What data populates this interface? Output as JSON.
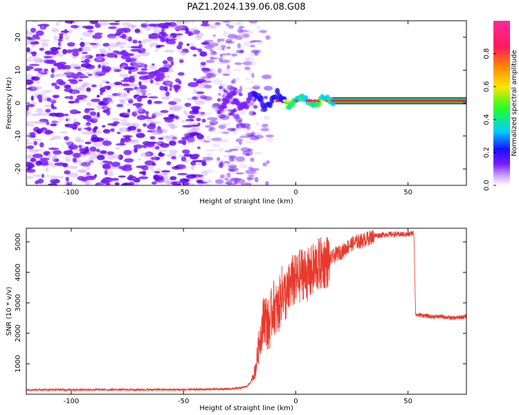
{
  "title": "PAZ1.2024.139.06.08.G08",
  "colors": {
    "snr_line": "#e8392c",
    "speckle": "#7b2bff",
    "strong_band": "#ff1a4a",
    "colormap": [
      "#ffffff",
      "#c9a2ff",
      "#7a1cff",
      "#1a10ff",
      "#00d0ff",
      "#22ff22",
      "#ffe600",
      "#ff8800",
      "#ff1a5a",
      "#ff2a9a"
    ]
  },
  "chart_data": [
    {
      "type": "heatmap",
      "name": "spectrogram",
      "xlabel": "Height of straight line (km)",
      "ylabel": "Frequency (Hz)",
      "xlim": [
        -120,
        76
      ],
      "ylim": [
        -25,
        25
      ],
      "xticks": [
        -100,
        -50,
        0,
        50
      ],
      "xticklabels": [
        "-100",
        "-50",
        "0",
        "50"
      ],
      "yticks": [
        -20,
        -10,
        0,
        10,
        20
      ],
      "yticklabels": [
        "-20",
        "-10",
        "0",
        "10",
        "20"
      ],
      "grid": false,
      "colorbar": {
        "label": "Normalized spectral amplitude",
        "range": [
          0,
          1
        ],
        "ticks": [
          0.0,
          0.2,
          0.4,
          0.6,
          0.8
        ],
        "ticklabels": [
          "0.0",
          "0.2",
          "0.4",
          "0.6",
          "0.8"
        ]
      },
      "noise_region_x": [
        -120,
        -17
      ],
      "signal_band": {
        "frequency_hz": 0.7,
        "x_start": -33,
        "clean_from": 15,
        "x_end": 76
      }
    },
    {
      "type": "line",
      "name": "snr",
      "xlabel": "Height of straight line (km)",
      "ylabel": "SNR (10 * v/v)",
      "xlim": [
        -120,
        76
      ],
      "ylim": [
        0,
        5450
      ],
      "xticks": [
        -100,
        -50,
        0,
        50
      ],
      "xticklabels": [
        "-100",
        "-50",
        "0",
        "50"
      ],
      "yticks": [
        1000,
        2000,
        3000,
        4000,
        5000
      ],
      "yticklabels": [
        "1000",
        "2000",
        "3000",
        "4000",
        "5000"
      ],
      "grid": false,
      "series": [
        {
          "x": [
            -120,
            -110,
            -100,
            -90,
            -80,
            -70,
            -60,
            -50,
            -40,
            -30,
            -25,
            -22,
            -20,
            -18,
            -16,
            -14,
            -12,
            -10,
            -8,
            -6,
            -4,
            -2,
            0,
            3,
            6,
            9,
            12,
            15,
            18,
            21,
            24,
            27,
            30,
            35,
            40,
            45,
            50,
            52.6,
            53.4,
            56,
            60,
            65,
            70,
            76
          ],
          "y": [
            150,
            150,
            150,
            150,
            150,
            150,
            150,
            150,
            160,
            170,
            200,
            250,
            400,
            800,
            1800,
            2600,
            2200,
            2900,
            2700,
            3400,
            3200,
            3700,
            3700,
            4000,
            3900,
            4200,
            4300,
            4400,
            4600,
            4700,
            4900,
            5000,
            5050,
            5200,
            5250,
            5250,
            5250,
            5300,
            2600,
            2600,
            2550,
            2550,
            2500,
            2550
          ]
        }
      ]
    }
  ]
}
